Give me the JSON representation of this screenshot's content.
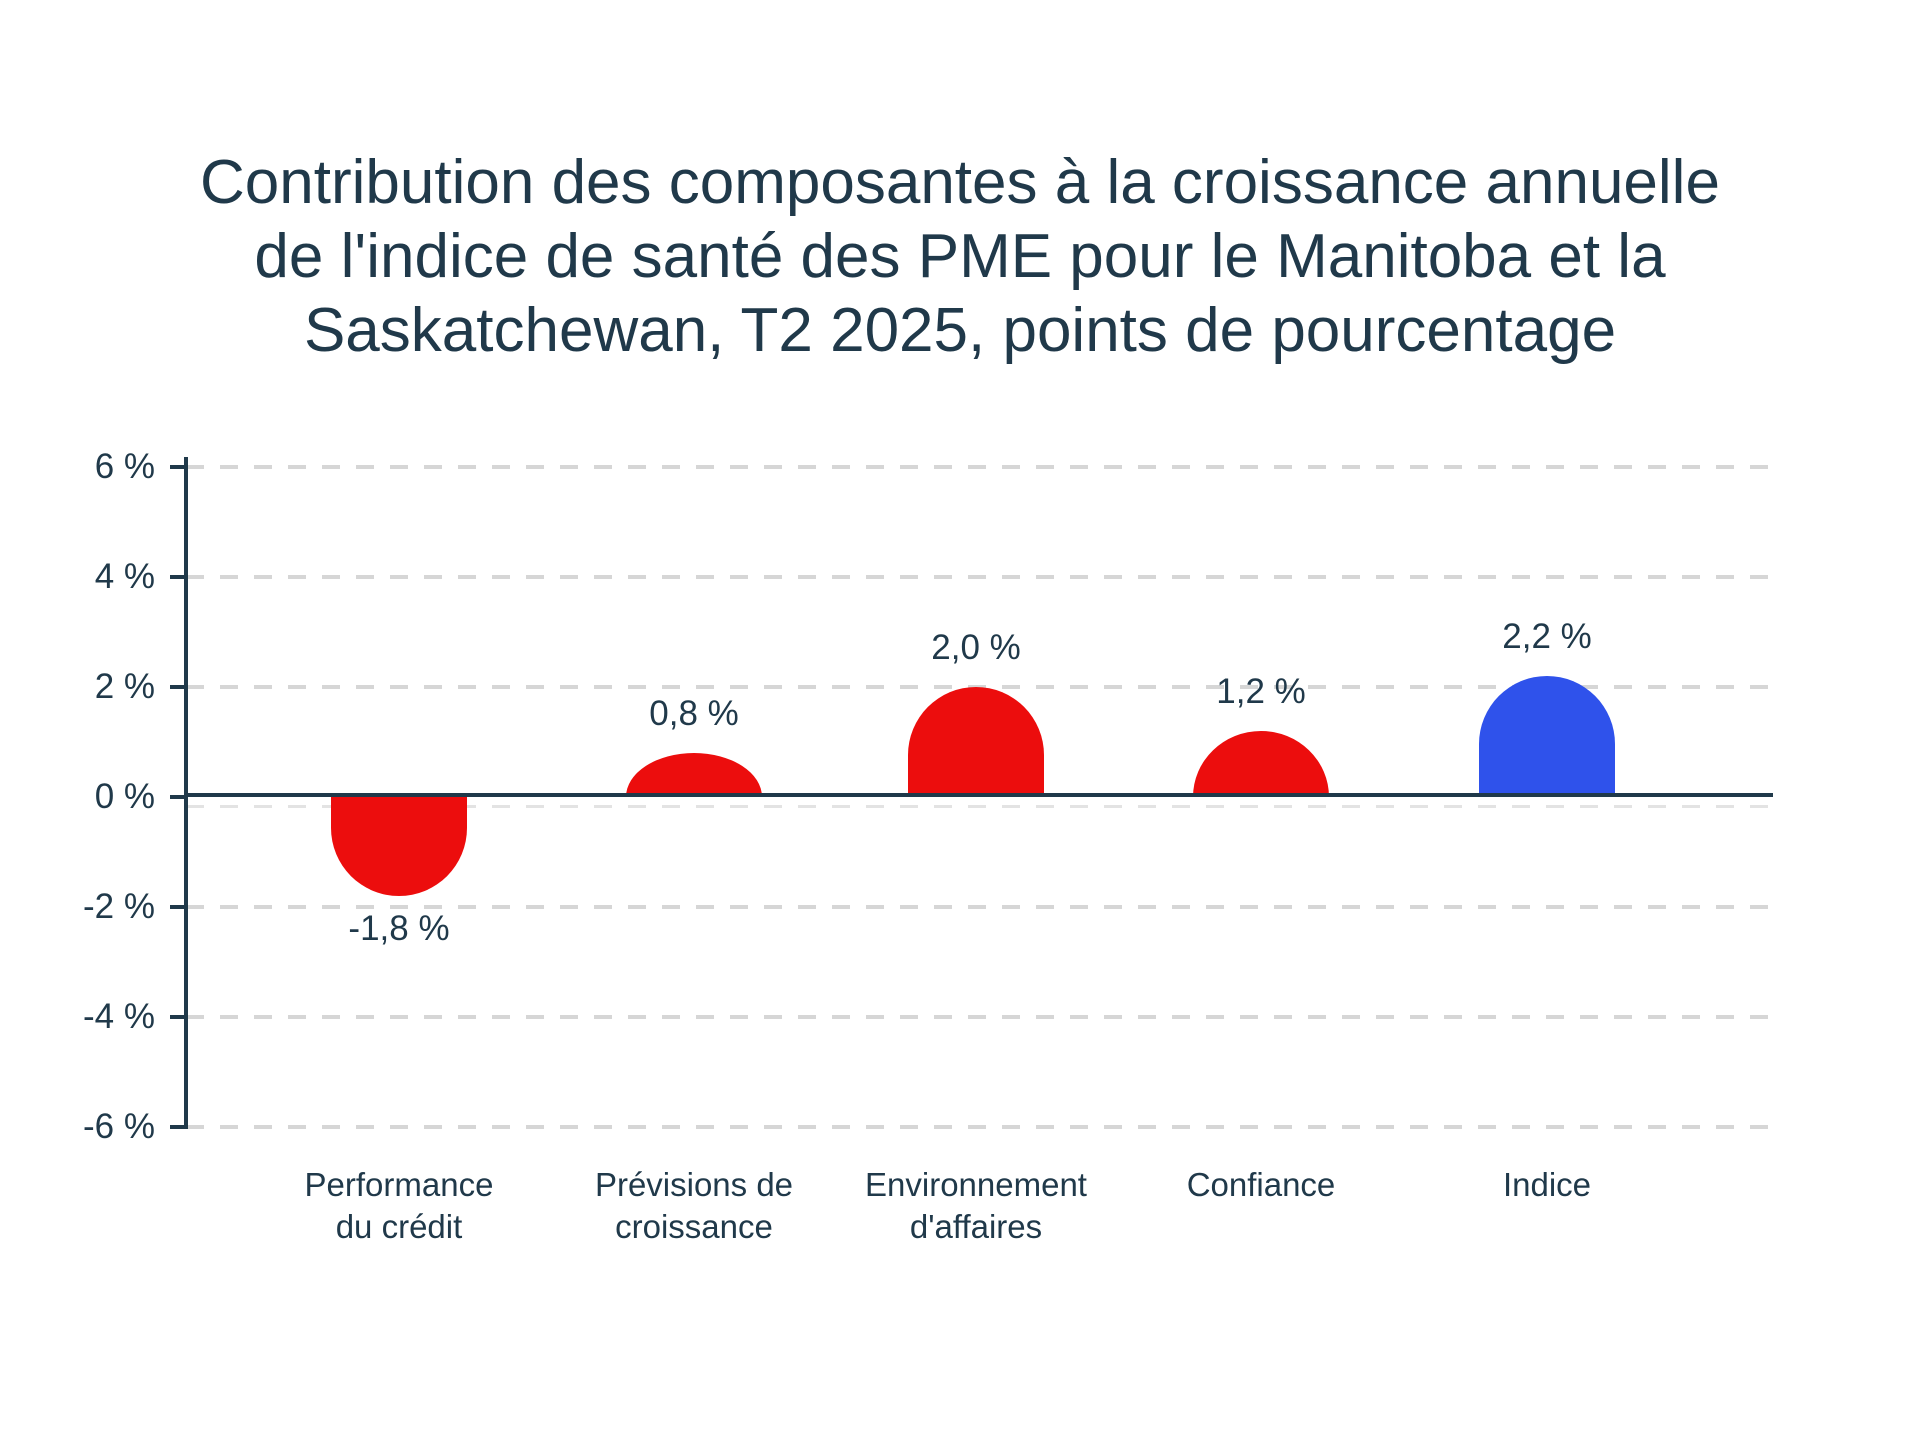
{
  "title": {
    "line1": "Contribution des composantes à la croissance annuelle",
    "line2": "de l'indice de santé des PME pour le Manitoba et la",
    "line3": "Saskatchewan, T2 2025, points de pourcentage"
  },
  "chart_data": {
    "type": "bar",
    "title": "Contribution des composantes à la croissance annuelle de l'indice de santé des PME pour le Manitoba et la Saskatchewan, T2 2025, points de pourcentage",
    "categories": [
      "Performance\ndu crédit",
      "Prévisions de\ncroissance",
      "Environnement\nd'affaires",
      "Confiance",
      "Indice"
    ],
    "values": [
      -1.8,
      0.8,
      2.0,
      1.2,
      2.2
    ],
    "value_labels": [
      "-1,8 %",
      "0,8 %",
      "2,0 %",
      "1,2 %",
      "2,2 %"
    ],
    "bar_roles": [
      "component",
      "component",
      "component",
      "component",
      "index"
    ],
    "y_ticks": [
      {
        "value": 6,
        "label": "6 %"
      },
      {
        "value": 4,
        "label": "4 %"
      },
      {
        "value": 2,
        "label": "2 %"
      },
      {
        "value": 0,
        "label": "0 %"
      },
      {
        "value": -2,
        "label": "-2 %"
      },
      {
        "value": -4,
        "label": "-4 %"
      },
      {
        "value": -6,
        "label": "-6 %"
      }
    ],
    "ylim": [
      -6,
      6
    ],
    "xlabel": "",
    "ylabel": "",
    "grid": "horizontal dashed",
    "legend": "none",
    "colors": {
      "component": "#EC0D0D",
      "index": "#2F52EB",
      "axis": "#20394A",
      "grid": "#D6D6D6",
      "zero_grid": "#E3E3E3",
      "text": "#20394A"
    }
  }
}
